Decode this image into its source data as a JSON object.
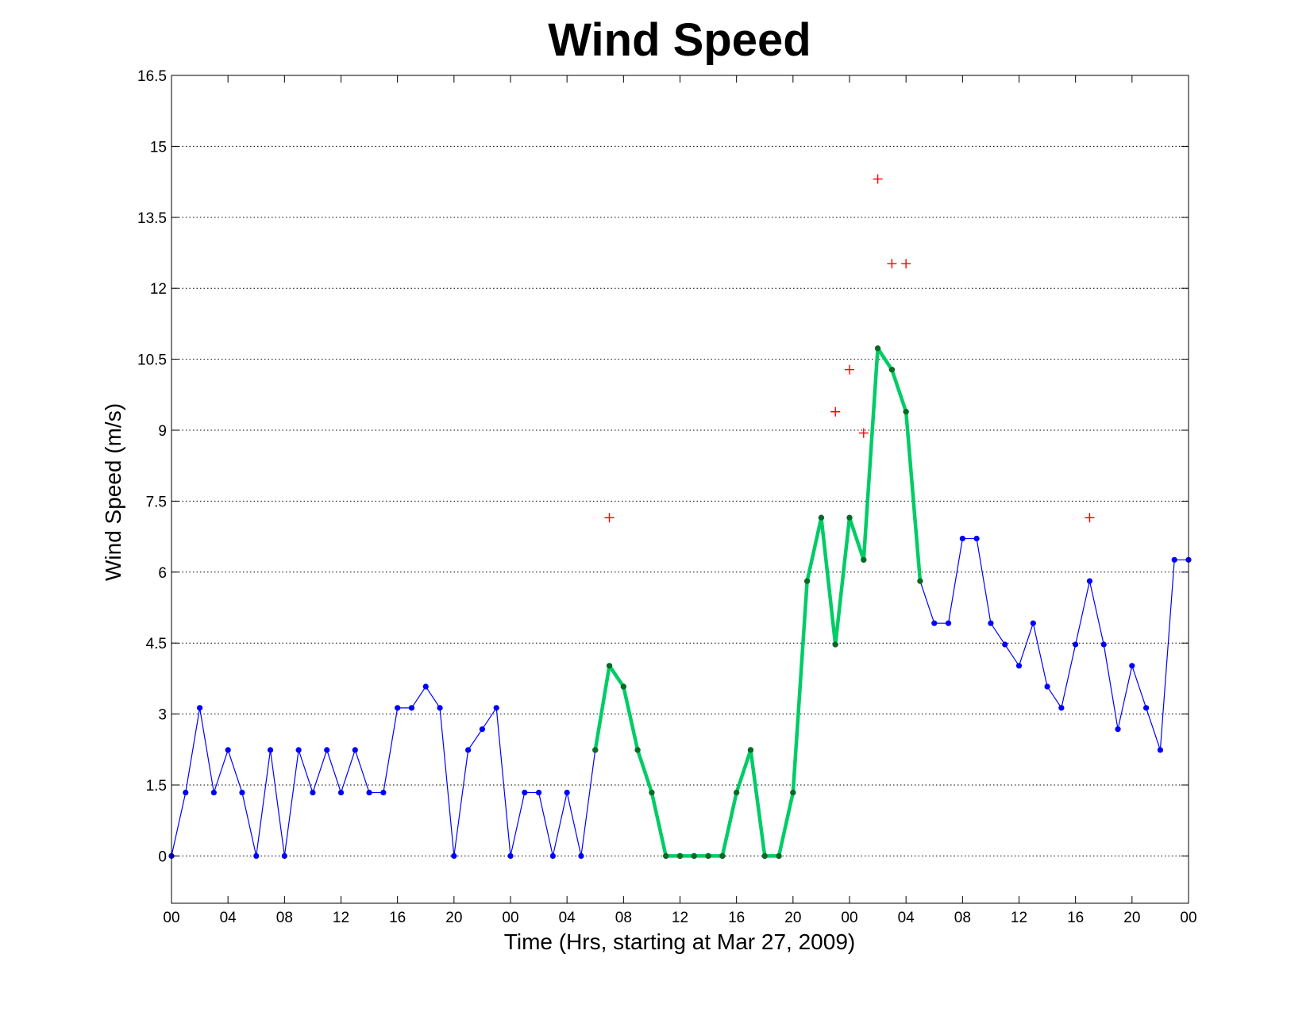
{
  "chart_data": {
    "type": "line",
    "title": "Wind Speed",
    "xlabel": "Time (Hrs, starting at Mar 27, 2009)",
    "ylabel": "Wind Speed (m/s)",
    "x_unit": "hours",
    "xlim": [
      0,
      72
    ],
    "ylim": [
      -1,
      16.5
    ],
    "y_ticks": [
      0,
      1.5,
      3,
      4.5,
      6,
      7.5,
      9,
      10.5,
      12,
      13.5,
      15,
      16.5
    ],
    "y_tick_labels": [
      "0",
      "1.5",
      "3",
      "4.5",
      "6",
      "7.5",
      "9",
      "10.5",
      "12",
      "13.5",
      "15",
      "16.5"
    ],
    "x_ticks": [
      0,
      4,
      8,
      12,
      16,
      20,
      24,
      28,
      32,
      36,
      40,
      44,
      48,
      52,
      56,
      60,
      64,
      68,
      72
    ],
    "x_tick_labels": [
      "00",
      "04",
      "08",
      "12",
      "16",
      "20",
      "00",
      "04",
      "08",
      "12",
      "16",
      "20",
      "00",
      "04",
      "08",
      "12",
      "16",
      "20",
      "00"
    ],
    "grid": "horizontal dotted",
    "series": [
      {
        "color": "#0000ff",
        "style": "thin line with dot markers",
        "x": [
          0,
          1,
          2,
          3,
          4,
          5,
          6,
          7,
          8,
          9,
          10,
          11,
          12,
          13,
          14,
          15,
          16,
          17,
          18,
          19,
          20,
          21,
          22,
          23,
          24,
          25,
          26,
          27,
          28,
          29,
          30,
          31,
          32,
          33,
          34,
          35,
          36,
          37,
          38,
          39,
          40,
          41,
          42,
          43,
          44,
          45,
          46,
          47,
          48,
          49,
          50,
          51,
          52,
          53,
          54,
          55,
          56,
          57,
          58,
          59,
          60,
          61,
          62,
          63,
          64,
          65,
          66,
          67,
          68,
          69,
          70,
          71,
          72
        ],
        "y": [
          0,
          1.34,
          3.13,
          1.34,
          2.24,
          1.34,
          0,
          2.24,
          0,
          2.24,
          1.34,
          2.24,
          1.34,
          2.24,
          1.34,
          1.34,
          3.13,
          3.13,
          3.58,
          3.13,
          0,
          2.24,
          2.68,
          3.13,
          0,
          1.34,
          1.34,
          0,
          1.34,
          0,
          2.24,
          4.02,
          3.58,
          2.24,
          1.34,
          0,
          0,
          0,
          0,
          0,
          1.34,
          2.24,
          0,
          0,
          1.34,
          5.81,
          7.15,
          4.47,
          7.15,
          6.26,
          10.73,
          10.28,
          9.39,
          5.81,
          4.92,
          4.92,
          6.71,
          6.71,
          4.92,
          4.47,
          4.02,
          4.92,
          3.58,
          3.13,
          4.47,
          5.81,
          4.47,
          2.68,
          4.02,
          3.13,
          2.24,
          6.26,
          6.26
        ]
      },
      {
        "color": "#00cc66",
        "style": "thick line with dark green dot markers",
        "x": [
          30,
          31,
          32,
          33,
          34,
          35,
          36,
          37,
          38,
          39,
          40,
          41,
          42,
          43,
          44,
          45,
          46,
          47,
          48,
          49,
          50,
          51,
          52,
          53
        ],
        "y": [
          2.24,
          4.02,
          3.58,
          2.24,
          1.34,
          0,
          0,
          0,
          0,
          0,
          1.34,
          2.24,
          0,
          0,
          1.34,
          5.81,
          7.15,
          4.47,
          7.15,
          6.26,
          10.73,
          10.28,
          9.39,
          5.81
        ]
      },
      {
        "color": "#ff0000",
        "style": "plus markers",
        "x": [
          31,
          47,
          48,
          49,
          50,
          51,
          52,
          65
        ],
        "y": [
          7.15,
          9.39,
          10.28,
          8.94,
          14.31,
          12.52,
          12.52,
          7.15
        ]
      }
    ]
  }
}
